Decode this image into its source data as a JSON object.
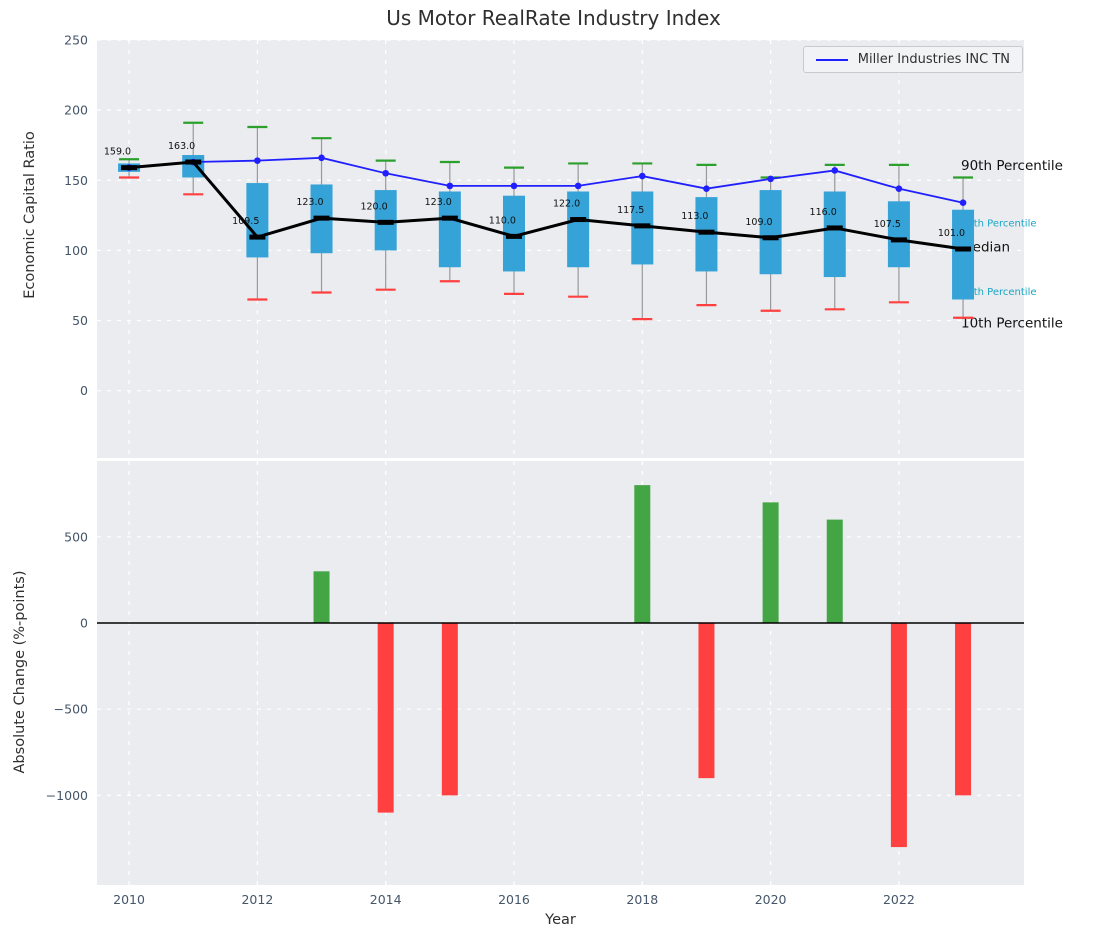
{
  "title": "Us Motor RealRate Industry Index",
  "xlabel": "Year",
  "legend": {
    "label": "Miller Industries INC TN"
  },
  "colors": {
    "box": "#35a2d8",
    "whisker": "#999999",
    "cap_high": "#2ca02c",
    "cap_low": "#ff4040",
    "median_line": "#000000",
    "miller_line": "#2020ff",
    "bar_positive": "#44a544",
    "bar_negative": "#ff4040",
    "panel_bg": "#ebecef",
    "grid": "#ffffff",
    "tick": "#44566a",
    "annotation_black": "#111111",
    "annotation_cyan": "#18a6c6"
  },
  "chart_data": [
    {
      "type": "boxplot+line",
      "title": "Us Motor RealRate Industry Index",
      "ylabel": "Economic Capital Ratio",
      "xlabel": "Year",
      "ylim": [
        -48,
        250
      ],
      "yticks": [
        0,
        50,
        100,
        150,
        200,
        250
      ],
      "xlim": [
        2009.5,
        2023.95
      ],
      "xticks": [
        2010,
        2012,
        2014,
        2016,
        2018,
        2020,
        2022
      ],
      "years": [
        2010,
        2011,
        2012,
        2013,
        2014,
        2015,
        2016,
        2017,
        2018,
        2019,
        2020,
        2021,
        2022,
        2023
      ],
      "median": [
        159,
        163,
        109.5,
        123,
        120,
        123,
        110,
        122,
        117.5,
        113,
        109,
        116,
        107.5,
        101
      ],
      "median_labels": [
        "159.0",
        "163.0",
        "109.5",
        "123.0",
        "120.0",
        "123.0",
        "110.0",
        "122.0",
        "117.5",
        "113.0",
        "109.0",
        "116.0",
        "107.5",
        "101.0"
      ],
      "q1": [
        156,
        152,
        95,
        98,
        100,
        88,
        85,
        88,
        90,
        85,
        83,
        81,
        88,
        65
      ],
      "q3": [
        162,
        168,
        148,
        147,
        143,
        142,
        139,
        142,
        142,
        138,
        143,
        142,
        135,
        129
      ],
      "p10": [
        152,
        140,
        65,
        70,
        72,
        78,
        69,
        67,
        51,
        61,
        57,
        58,
        63,
        52
      ],
      "p90": [
        165,
        191,
        188,
        180,
        164,
        163,
        159,
        162,
        162,
        161,
        152,
        161,
        161,
        152
      ],
      "series": [
        {
          "name": "Miller Industries INC TN",
          "values": [
            159,
            163,
            164,
            166,
            155,
            146,
            146,
            146,
            153,
            144,
            151,
            157,
            144,
            134
          ]
        }
      ],
      "annotations": [
        {
          "label": "90th Percentile",
          "y": 160,
          "color": "black"
        },
        {
          "label": "75th Percentile",
          "y": 120,
          "color": "cyan"
        },
        {
          "label": "Median",
          "y": 102,
          "color": "black"
        },
        {
          "label": "25th Percentile",
          "y": 71,
          "color": "cyan"
        },
        {
          "label": "10th Percentile",
          "y": 48,
          "color": "black"
        }
      ],
      "legend_position": "upper right",
      "grid": true
    },
    {
      "type": "bar",
      "ylabel": "Absolute Change (%-points)",
      "ylim": [
        -1520,
        940
      ],
      "yticks": [
        -1000,
        -500,
        0,
        500
      ],
      "categories": [
        2010,
        2011,
        2012,
        2013,
        2014,
        2015,
        2016,
        2017,
        2018,
        2019,
        2020,
        2021,
        2022,
        2023
      ],
      "values": [
        null,
        null,
        null,
        300,
        -1100,
        -1000,
        null,
        null,
        800,
        -900,
        700,
        600,
        -1300,
        -1000
      ],
      "grid": true
    }
  ]
}
